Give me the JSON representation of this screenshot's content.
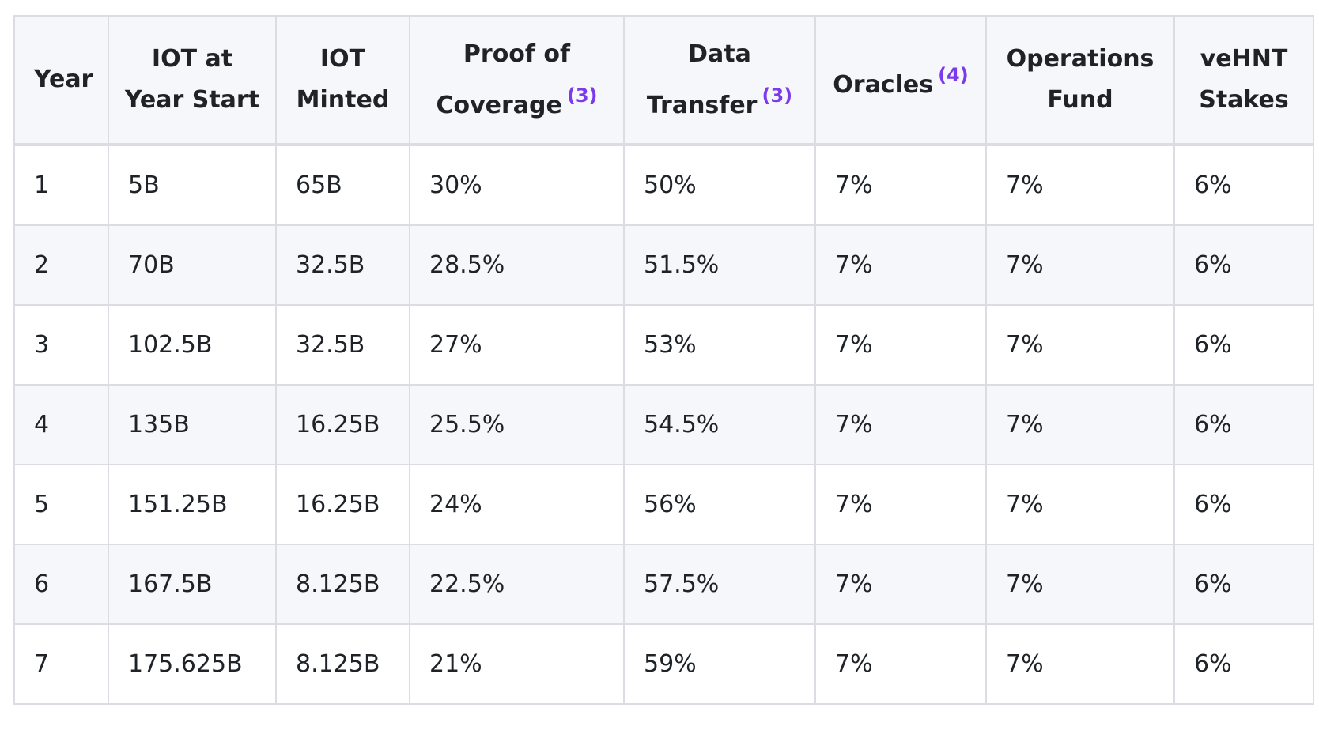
{
  "table": {
    "headers": [
      {
        "text": "Year"
      },
      {
        "text": "IOT at Year Start"
      },
      {
        "text": "IOT Minted"
      },
      {
        "text": "Proof of Coverage",
        "note": "(3)"
      },
      {
        "text": "Data Transfer",
        "note": "(3)"
      },
      {
        "text": "Oracles",
        "note": "(4)"
      },
      {
        "text": "Operations Fund"
      },
      {
        "text": "veHNT Stakes"
      }
    ],
    "rows": [
      [
        "1",
        "5B",
        "65B",
        "30%",
        "50%",
        "7%",
        "7%",
        "6%"
      ],
      [
        "2",
        "70B",
        "32.5B",
        "28.5%",
        "51.5%",
        "7%",
        "7%",
        "6%"
      ],
      [
        "3",
        "102.5B",
        "32.5B",
        "27%",
        "53%",
        "7%",
        "7%",
        "6%"
      ],
      [
        "4",
        "135B",
        "16.25B",
        "25.5%",
        "54.5%",
        "7%",
        "7%",
        "6%"
      ],
      [
        "5",
        "151.25B",
        "16.25B",
        "24%",
        "56%",
        "7%",
        "7%",
        "6%"
      ],
      [
        "6",
        "167.5B",
        "8.125B",
        "22.5%",
        "57.5%",
        "7%",
        "7%",
        "6%"
      ],
      [
        "7",
        "175.625B",
        "8.125B",
        "21%",
        "59%",
        "7%",
        "7%",
        "6%"
      ]
    ]
  }
}
